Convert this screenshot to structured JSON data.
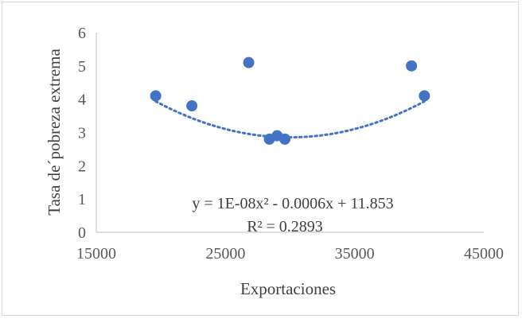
{
  "chart_data": {
    "type": "scatter",
    "title": "",
    "xlabel": "Exportaciones",
    "ylabel": "Tasa de´pobreza extrema",
    "xlim": [
      15000,
      45000
    ],
    "ylim": [
      0,
      6
    ],
    "x_ticks": [
      "15000",
      "25000",
      "35000",
      "45000"
    ],
    "y_ticks": [
      "0",
      "1",
      "2",
      "3",
      "4",
      "5",
      "6"
    ],
    "grid": false,
    "legend": "none",
    "series": [
      {
        "color": "#4472c4",
        "points": [
          {
            "x": 19600,
            "y": 4.1
          },
          {
            "x": 22400,
            "y": 3.8
          },
          {
            "x": 26800,
            "y": 5.1
          },
          {
            "x": 28400,
            "y": 2.8
          },
          {
            "x": 29000,
            "y": 2.9
          },
          {
            "x": 29600,
            "y": 2.8
          },
          {
            "x": 39400,
            "y": 5.0
          },
          {
            "x": 40400,
            "y": 4.1
          }
        ]
      }
    ],
    "trendline": {
      "type": "polynomial",
      "coefficients": [
        1e-08,
        -0.0006,
        11.853
      ],
      "x_range": [
        19600,
        40400
      ],
      "color": "#4472c4",
      "style": "dotted",
      "equation_label": "y = 1E-08x² - 0.0006x + 11.853",
      "r2_label": "R² = 0.2893"
    }
  }
}
